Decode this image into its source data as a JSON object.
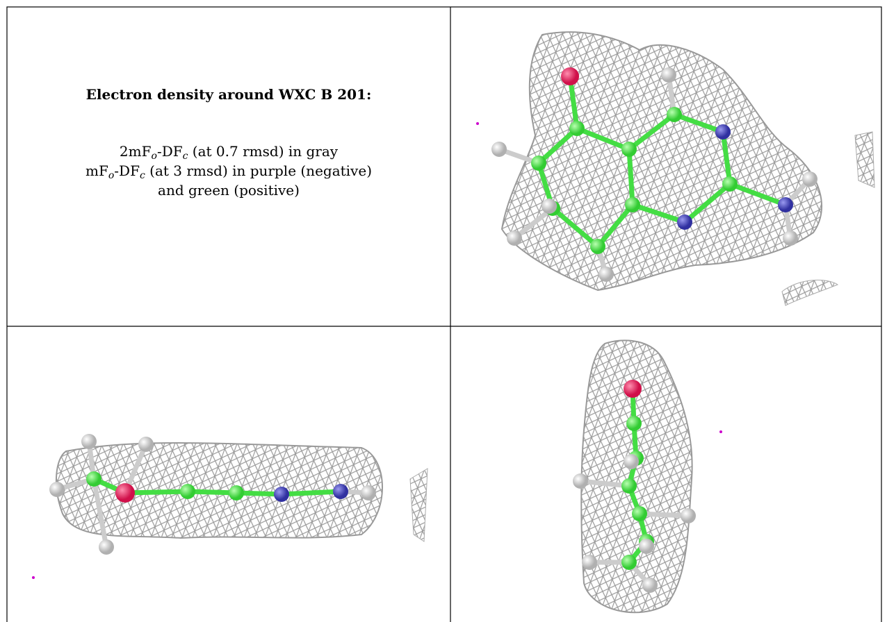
{
  "panel": {
    "title": "Electron density around WXC B 201:",
    "legend": [
      [
        {
          "text": "2mF",
          "sub": false
        },
        {
          "text": "o",
          "sub": true
        },
        {
          "text": "-DF",
          "sub": false
        },
        {
          "text": "c",
          "sub": true
        },
        {
          "text": " (at 0.7 rmsd) in gray",
          "sub": false
        }
      ],
      [
        {
          "text": "mF",
          "sub": false
        },
        {
          "text": "o",
          "sub": true
        },
        {
          "text": "-DF",
          "sub": false
        },
        {
          "text": "c",
          "sub": true
        },
        {
          "text": " (at 3 rmsd) in purple (negative)",
          "sub": false
        }
      ],
      [
        {
          "text": "and green (positive)",
          "sub": false
        }
      ]
    ]
  }
}
